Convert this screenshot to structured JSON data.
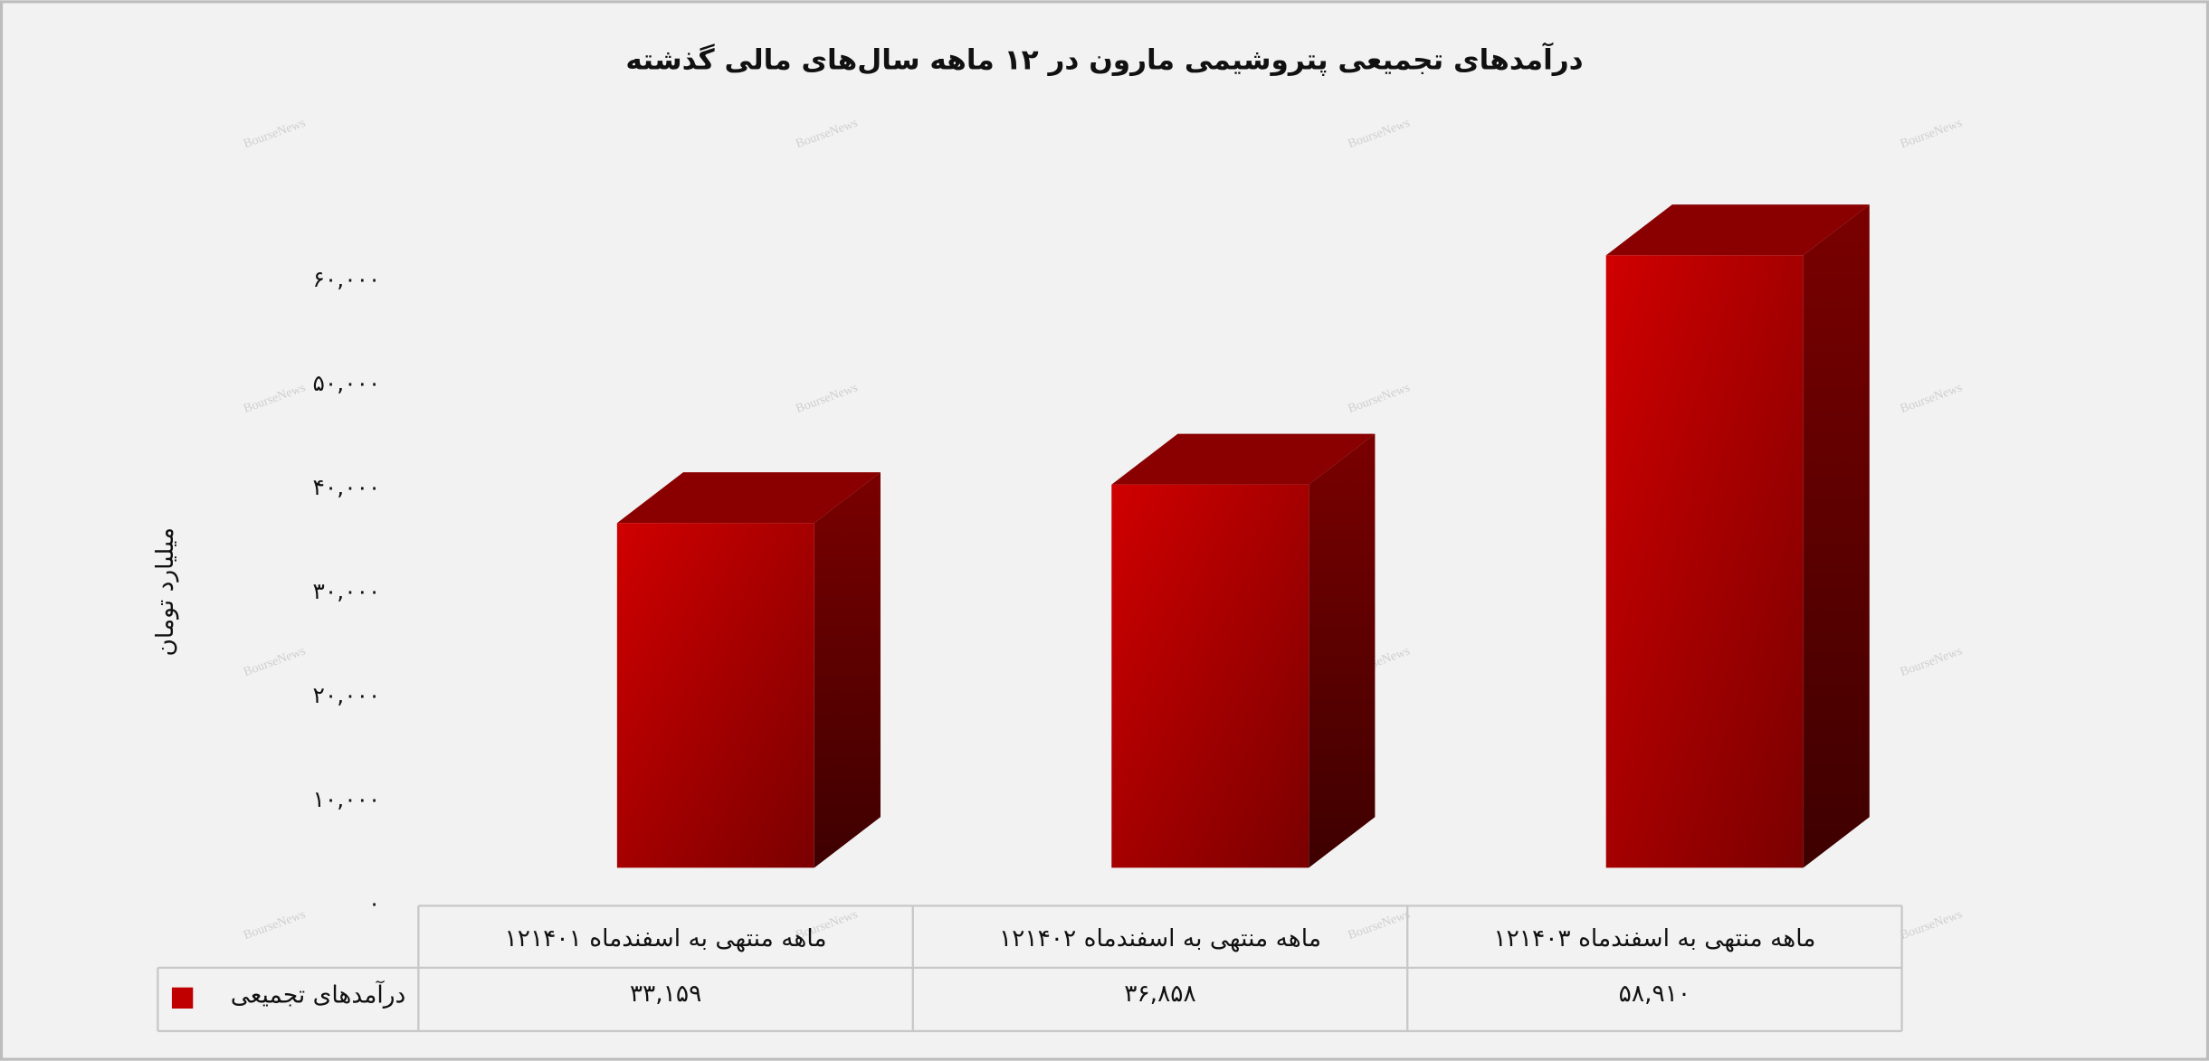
{
  "chart_data": {
    "type": "bar3d",
    "title": "درآمدهای تجمیعی پتروشیمی مارون در ۱۲ ماهه سال‌های مالی گذشته",
    "y_label": "میلیارد تومان",
    "watermark": "BourseNews",
    "categories": [
      "۱۲ماهه منتهی به اسفندماه ۱۴۰۱",
      "۱۲ماهه منتهی به اسفندماه ۱۴۰۲",
      "۱۲ماهه منتهی به اسفندماه ۱۴۰۳"
    ],
    "series": [
      {
        "name": "درآمدهای تجمیعی",
        "color": "#c00000",
        "values": [
          33159,
          36858,
          58910
        ],
        "value_labels": [
          "۳۳,۱۵۹",
          "۳۶,۸۵۸",
          "۵۸,۹۱۰"
        ]
      }
    ],
    "ylim": [
      0,
      60000
    ],
    "yticks": [
      {
        "value": 0,
        "label": "۰"
      },
      {
        "value": 10000,
        "label": "۱۰,۰۰۰"
      },
      {
        "value": 20000,
        "label": "۲۰,۰۰۰"
      },
      {
        "value": 30000,
        "label": "۳۰,۰۰۰"
      },
      {
        "value": 40000,
        "label": "۴۰,۰۰۰"
      },
      {
        "value": 50000,
        "label": "۵۰,۰۰۰"
      },
      {
        "value": 60000,
        "label": "۶۰,۰۰۰"
      }
    ],
    "grid": false
  }
}
